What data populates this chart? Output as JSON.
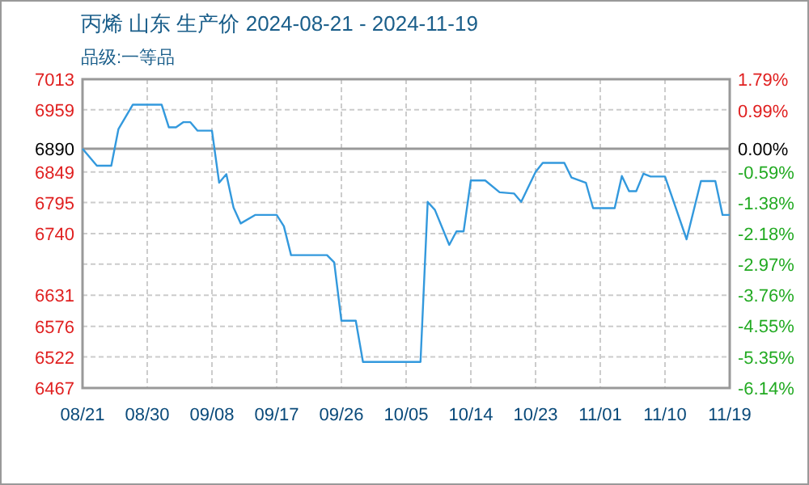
{
  "chart_data": {
    "type": "line",
    "title": "丙烯 山东 生产价 2024-08-21 - 2024-11-19",
    "subtitle": "品级:一等品",
    "x": [
      "2024-08-21",
      "2024-08-23",
      "2024-08-25",
      "2024-08-26",
      "2024-08-28",
      "2024-09-01",
      "2024-09-02",
      "2024-09-03",
      "2024-09-04",
      "2024-09-05",
      "2024-09-06",
      "2024-09-08",
      "2024-09-09",
      "2024-09-10",
      "2024-09-11",
      "2024-09-12",
      "2024-09-14",
      "2024-09-17",
      "2024-09-18",
      "2024-09-19",
      "2024-09-24",
      "2024-09-25",
      "2024-09-26",
      "2024-09-28",
      "2024-09-29",
      "2024-10-07",
      "2024-10-08",
      "2024-10-09",
      "2024-10-11",
      "2024-10-12",
      "2024-10-13",
      "2024-10-14",
      "2024-10-16",
      "2024-10-18",
      "2024-10-20",
      "2024-10-21",
      "2024-10-23",
      "2024-10-24",
      "2024-10-27",
      "2024-10-28",
      "2024-10-30",
      "2024-10-31",
      "2024-11-03",
      "2024-11-04",
      "2024-11-05",
      "2024-11-06",
      "2024-11-07",
      "2024-11-08",
      "2024-11-10",
      "2024-11-13",
      "2024-11-15",
      "2024-11-17",
      "2024-11-18",
      "2024-11-19"
    ],
    "series": [
      {
        "color": "#3399dd",
        "values": [
          6890,
          6860,
          6860,
          6925,
          6968,
          6968,
          6928,
          6928,
          6937,
          6937,
          6922,
          6922,
          6830,
          6845,
          6786,
          6758,
          6773,
          6773,
          6753,
          6702,
          6702,
          6689,
          6586,
          6586,
          6513,
          6513,
          6796,
          6782,
          6720,
          6744,
          6744,
          6834,
          6834,
          6813,
          6811,
          6796,
          6849,
          6865,
          6865,
          6839,
          6830,
          6785,
          6785,
          6842,
          6815,
          6815,
          6846,
          6841,
          6841,
          6730,
          6833,
          6833,
          6773,
          6773
        ]
      }
    ],
    "xlim": [
      "2024-08-21",
      "2024-11-19"
    ],
    "xticks": [
      {
        "value": "2024-08-21",
        "label": "08/21"
      },
      {
        "value": "2024-08-30",
        "label": "08/30"
      },
      {
        "value": "2024-09-08",
        "label": "09/08"
      },
      {
        "value": "2024-09-17",
        "label": "09/17"
      },
      {
        "value": "2024-09-26",
        "label": "09/26"
      },
      {
        "value": "2024-10-05",
        "label": "10/05"
      },
      {
        "value": "2024-10-14",
        "label": "10/14"
      },
      {
        "value": "2024-10-23",
        "label": "10/23"
      },
      {
        "value": "2024-11-01",
        "label": "11/01"
      },
      {
        "value": "2024-11-10",
        "label": "11/10"
      },
      {
        "value": "2024-11-19",
        "label": "11/19"
      }
    ],
    "ylim": [
      6467,
      7013
    ],
    "yticks": [
      6467,
      6522,
      6576,
      6631,
      {
        "value": 6686,
        "label": null
      },
      6740,
      6795,
      6849,
      6959,
      7013
    ],
    "y2lim": [
      -6.14,
      1.79
    ],
    "y2ticks": [
      {
        "value": -6.14,
        "label": "-6.14%"
      },
      {
        "value": -5.35,
        "label": "-5.35%"
      },
      {
        "value": -4.55,
        "label": "-4.55%"
      },
      {
        "value": -3.76,
        "label": "-3.76%"
      },
      {
        "value": -2.97,
        "label": "-2.97%"
      },
      {
        "value": -2.18,
        "label": "-2.18%"
      },
      {
        "value": -1.38,
        "label": "-1.38%"
      },
      {
        "value": -0.59,
        "label": "-0.59%"
      },
      {
        "value": 0,
        "label": "0.00%"
      },
      {
        "value": 0.99,
        "label": "0.99%"
      },
      {
        "value": 1.79,
        "label": "1.79%"
      }
    ],
    "ref_lines": [
      {
        "axis": "y",
        "value": 6890,
        "label": "6890",
        "color": "#999999"
      }
    ],
    "grid": true,
    "marker": "none",
    "line_style": "solid"
  }
}
